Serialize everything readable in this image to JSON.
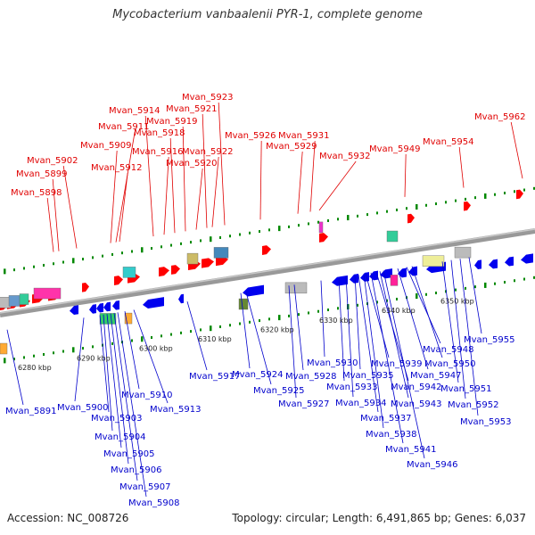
{
  "title": "Mycobacterium vanbaalenii PYR-1, complete genome",
  "accession": "Accession: NC_008726",
  "summary": "Topology: circular; Length: 6,491,865 bp; Genes: 6,037",
  "colors": {
    "forward_gene": "#ff0000",
    "reverse_gene": "#0000ee",
    "top_label": "#e00000",
    "bottom_label": "#0000cc",
    "backbone": "#999999",
    "tick": "#008800"
  },
  "scale_labels": [
    "6280 kbp",
    "6290 kbp",
    "6300 kbp",
    "6310 kbp",
    "6320 kbp",
    "6330 kbp",
    "6340 kbp",
    "6350 kbp"
  ],
  "top_labels": [
    "Mvan_5898",
    "Mvan_5899",
    "Mvan_5902",
    "Mvan_5909",
    "Mvan_5911",
    "Mvan_5912",
    "Mvan_5914",
    "Mvan_5916",
    "Mvan_5918",
    "Mvan_5919",
    "Mvan_5920",
    "Mvan_5921",
    "Mvan_5922",
    "Mvan_5923",
    "Mvan_5926",
    "Mvan_5929",
    "Mvan_5931",
    "Mvan_5932",
    "Mvan_5949",
    "Mvan_5954",
    "Mvan_5962"
  ],
  "bottom_labels": [
    "Mvan_5891",
    "Mvan_5900",
    "Mvan_5903",
    "Mvan_5904",
    "Mvan_5905",
    "Mvan_5906",
    "Mvan_5907",
    "Mvan_5908",
    "Mvan_5910",
    "Mvan_5913",
    "Mvan_5917",
    "Mvan_5924",
    "Mvan_5925",
    "Mvan_5927",
    "Mvan_5928",
    "Mvan_5930",
    "Mvan_5933",
    "Mvan_5934",
    "Mvan_5935",
    "Mvan_5937",
    "Mvan_5938",
    "Mvan_5939",
    "Mvan_5941",
    "Mvan_5942",
    "Mvan_5943",
    "Mvan_5946",
    "Mvan_5947",
    "Mvan_5948",
    "Mvan_5950",
    "Mvan_5951",
    "Mvan_5952",
    "Mvan_5953",
    "Mvan_5955"
  ]
}
